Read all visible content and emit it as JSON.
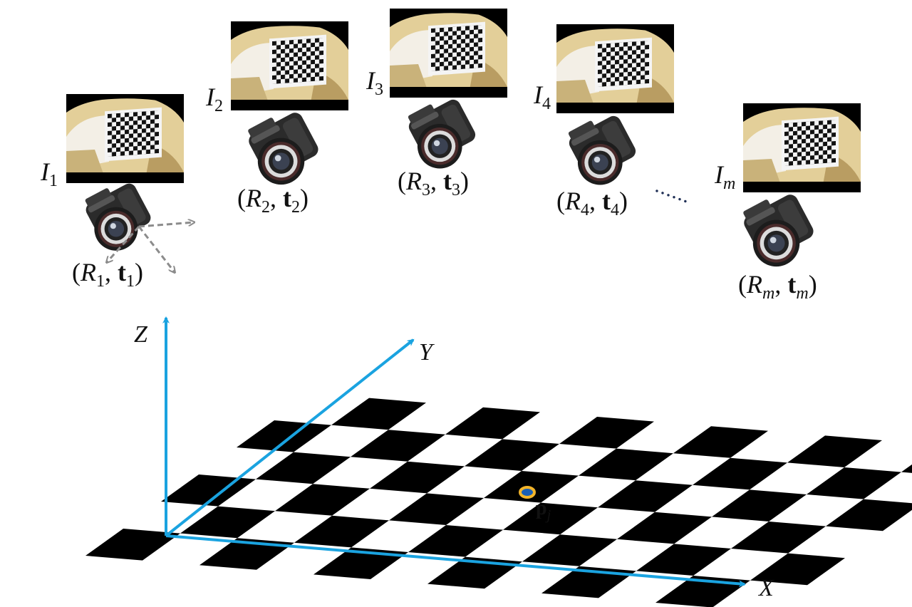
{
  "colors": {
    "axis": "#1aa3e0",
    "board_square": "#000000",
    "point_ring": "#f2b42a",
    "point_fill": "#1a5fb4",
    "helmet": "#e3cf99",
    "camera_body": "#2b2b2b",
    "dots": "#1f2f55",
    "local_axes": "#8c8c8c"
  },
  "axes": {
    "x_label": "X",
    "y_label": "Y",
    "z_label": "Z"
  },
  "point": {
    "main": "p",
    "sub": "j"
  },
  "ellipsis": "......",
  "views": [
    {
      "image_label": "I",
      "image_sub": "1",
      "pose_R": "R",
      "pose_t": "t",
      "pose_sub": "1",
      "icons": [
        "calibration-photo-icon",
        "camera-icon"
      ]
    },
    {
      "image_label": "I",
      "image_sub": "2",
      "pose_R": "R",
      "pose_t": "t",
      "pose_sub": "2",
      "icons": [
        "calibration-photo-icon",
        "camera-icon"
      ]
    },
    {
      "image_label": "I",
      "image_sub": "3",
      "pose_R": "R",
      "pose_t": "t",
      "pose_sub": "3",
      "icons": [
        "calibration-photo-icon",
        "camera-icon"
      ]
    },
    {
      "image_label": "I",
      "image_sub": "4",
      "pose_R": "R",
      "pose_t": "t",
      "pose_sub": "4",
      "icons": [
        "calibration-photo-icon",
        "camera-icon"
      ]
    },
    {
      "image_label": "I",
      "image_sub": "m",
      "pose_R": "R",
      "pose_t": "t",
      "pose_sub": "m",
      "icons": [
        "calibration-photo-icon",
        "camera-icon"
      ]
    }
  ]
}
